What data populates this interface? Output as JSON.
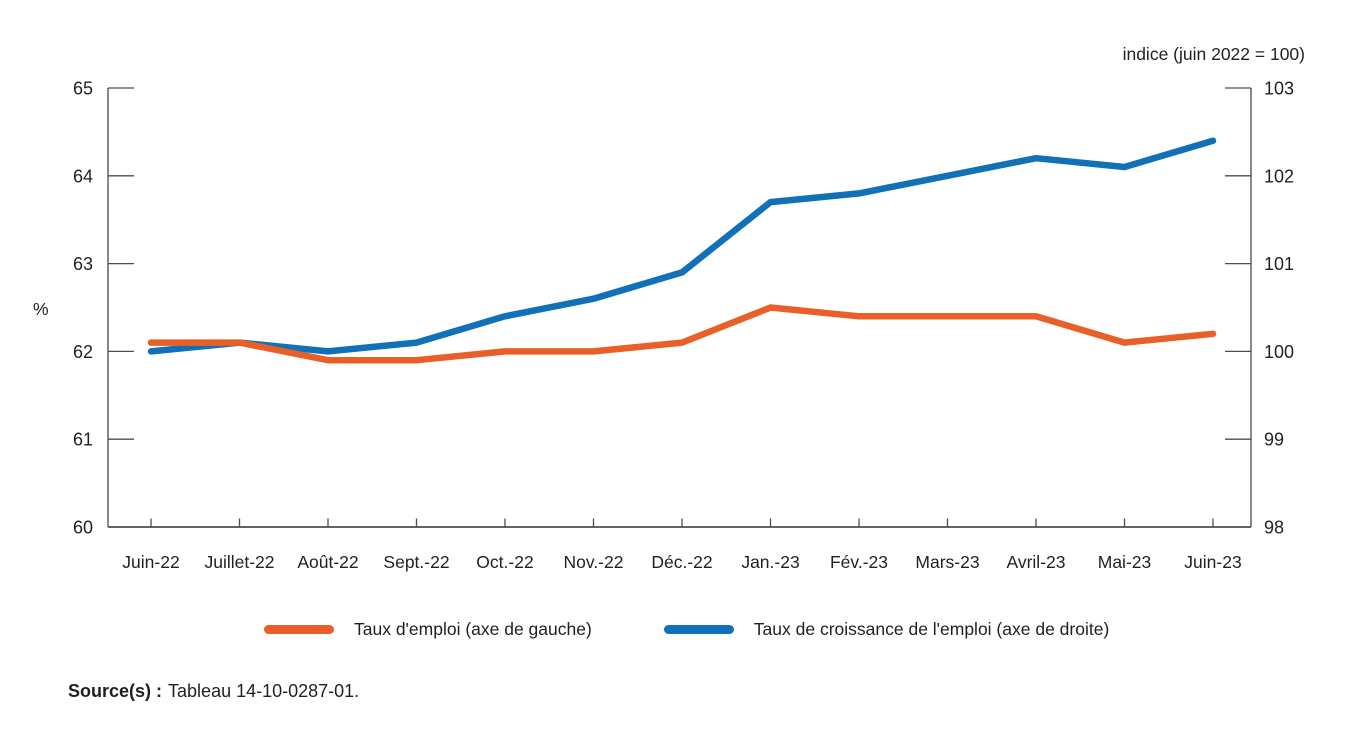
{
  "chart_data": {
    "type": "line",
    "categories": [
      "Juin-22",
      "Juillet-22",
      "Août-22",
      "Sept.-22",
      "Oct.-22",
      "Nov.-22",
      "Déc.-22",
      "Jan.-23",
      "Fév.-23",
      "Mars-23",
      "Avril-23",
      "Mai-23",
      "Juin-23"
    ],
    "series": [
      {
        "name": "Taux d'emploi (axe de gauche)",
        "axis": "left",
        "color": "#E95F28",
        "values": [
          62.1,
          62.1,
          61.9,
          61.9,
          62.0,
          62.0,
          62.1,
          62.5,
          62.4,
          62.4,
          62.4,
          62.1,
          62.2
        ]
      },
      {
        "name": "Taux de croissance de l'emploi (axe de droite)",
        "axis": "right",
        "color": "#1070B8",
        "values": [
          100.0,
          100.1,
          100.0,
          100.1,
          100.4,
          100.6,
          100.9,
          101.7,
          101.8,
          102.0,
          102.2,
          102.1,
          102.4
        ]
      }
    ],
    "left_axis": {
      "label": "%",
      "min": 60,
      "max": 65,
      "ticks": [
        60,
        61,
        62,
        63,
        64,
        65
      ]
    },
    "right_axis": {
      "label": "indice (juin 2022 = 100)",
      "min": 98,
      "max": 103,
      "ticks": [
        98,
        99,
        100,
        101,
        102,
        103
      ]
    },
    "grid": false,
    "legend_position": "bottom"
  },
  "source": {
    "label": "Source(s) :",
    "text": "Tableau 14-10-0287-01."
  },
  "colors": {
    "axis": "#6a6a6a",
    "tick": "#4d4d4d",
    "text": "#231f20"
  }
}
